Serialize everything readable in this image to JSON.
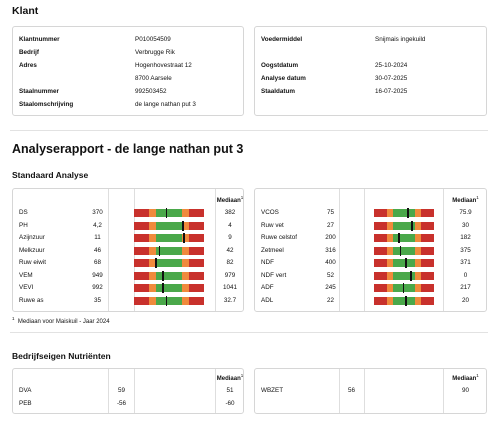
{
  "klant": {
    "title": "Klant",
    "left": [
      {
        "label": "Klantnummer",
        "value": "P010054509"
      },
      {
        "label": "Bedrijf",
        "value": "Verbrugge Rik"
      },
      {
        "label": "Adres",
        "value": "Hogenhovestraat 12"
      },
      {
        "label": "",
        "value": "8700 Aarsele"
      },
      {
        "label": "Staalnummer",
        "value": "992503452"
      },
      {
        "label": "Staalomschrijving",
        "value": "de lange nathan put 3"
      }
    ],
    "right": [
      {
        "label": "Voedermiddel",
        "value": "Snijmais ingekuild"
      },
      {
        "label": "",
        "value": ""
      },
      {
        "label": "Oogstdatum",
        "value": "25-10-2024"
      },
      {
        "label": "Analyse datum",
        "value": "30-07-2025"
      },
      {
        "label": "Staaldatum",
        "value": "16-07-2025"
      }
    ]
  },
  "report": {
    "title": "Analyserapport - de lange nathan put 3",
    "standaard_title": "Standaard Analyse",
    "mediaan_label": "Mediaan",
    "mediaan_sup": "1",
    "footnote_sup": "1",
    "footnote": "Mediaan voor Maiskuil - Jaar 2024",
    "left_rows": [
      {
        "name": "DS",
        "value": "370",
        "median": "382",
        "level": 0.45
      },
      {
        "name": "PH",
        "value": "4,2",
        "median": "4",
        "level": 0.69
      },
      {
        "name": "Azijnzuur",
        "value": "11",
        "median": "9",
        "level": 0.7
      },
      {
        "name": "Melkzuur",
        "value": "46",
        "median": "42",
        "level": 0.35
      },
      {
        "name": "Ruw eiwit",
        "value": "68",
        "median": "82",
        "level": 0.3
      },
      {
        "name": "VEM",
        "value": "949",
        "median": "979",
        "level": 0.4
      },
      {
        "name": "VEVI",
        "value": "992",
        "median": "1041",
        "level": 0.4
      },
      {
        "name": "Ruwe as",
        "value": "35",
        "median": "32.7",
        "level": 0.45
      }
    ],
    "right_rows": [
      {
        "name": "VCOS",
        "value": "75",
        "median": "75.9",
        "level": 0.55
      },
      {
        "name": "Ruw vet",
        "value": "27",
        "median": "30",
        "level": 0.62
      },
      {
        "name": "Ruwe celstof",
        "value": "200",
        "median": "182",
        "level": 0.4
      },
      {
        "name": "Zetmeel",
        "value": "316",
        "median": "375",
        "level": 0.43
      },
      {
        "name": "NDF",
        "value": "400",
        "median": "371",
        "level": 0.52
      },
      {
        "name": "NDF vert",
        "value": "52",
        "median": "0",
        "level": 0.6
      },
      {
        "name": "ADF",
        "value": "245",
        "median": "217",
        "level": 0.48
      },
      {
        "name": "ADL",
        "value": "22",
        "median": "20",
        "level": 0.52
      }
    ],
    "nutrienten_title": "Bedrijfseigen Nutriënten",
    "nut_left": [
      {
        "name": "DVA",
        "value": "59",
        "median": "51"
      },
      {
        "name": "PEB",
        "value": "-56",
        "median": "-60"
      }
    ],
    "nut_right": [
      {
        "name": "WBZET",
        "value": "56",
        "median": "90"
      }
    ]
  },
  "colors": {
    "red": "#c8312c",
    "orange": "#f08a3c",
    "green": "#4aa84a",
    "border": "#d6d6d6"
  }
}
